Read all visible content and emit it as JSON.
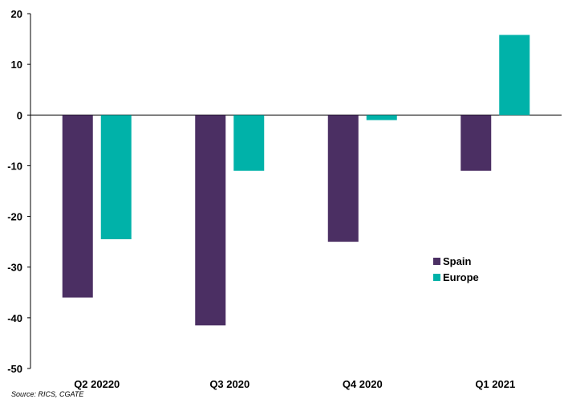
{
  "chart_data": {
    "type": "bar",
    "categories": [
      "Q2 20220",
      "Q3 2020",
      "Q4 2020",
      "Q1 2021"
    ],
    "series": [
      {
        "name": "Spain",
        "color": "#4b2f63",
        "values": [
          -36,
          -41.5,
          -25,
          -11
        ]
      },
      {
        "name": "Europe",
        "color": "#00b2a9",
        "values": [
          -24.5,
          -11,
          -1,
          15.8
        ]
      }
    ],
    "ylim": [
      -50,
      20
    ],
    "yticks": [
      20,
      10,
      0,
      -10,
      -20,
      -30,
      -40,
      -50
    ],
    "legend_position": "inside-right"
  },
  "source": "Source: RICS, CGATE"
}
